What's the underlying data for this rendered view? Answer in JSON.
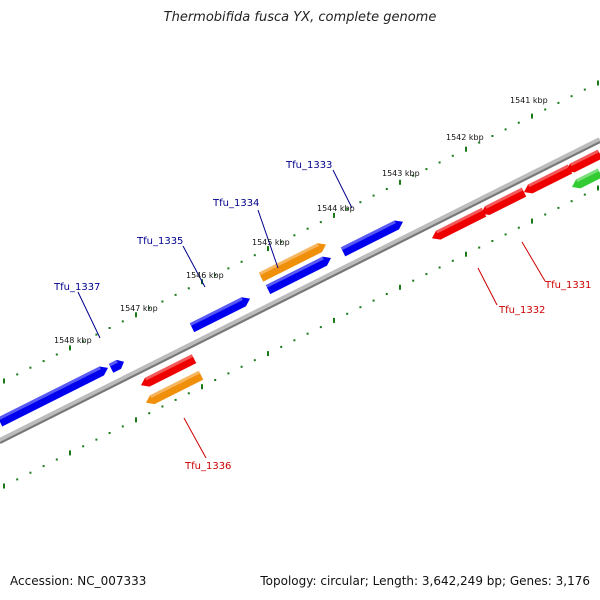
{
  "title": "Thermobifida fusca YX, complete genome",
  "accession_line": "Accession: NC_007333",
  "summary_line": "Topology: circular; Length: 3,642,249 bp; Genes: 3,176",
  "colors": {
    "backbone": "#8c8c8c",
    "ticks": "#1a7a1a",
    "forward_gene": "#0000ee",
    "reverse_gene": "#ee0000",
    "orange_gene": "#f0900a",
    "green_gene": "#33cc33",
    "forward_label": "#00008b",
    "reverse_label": "#cc0000"
  },
  "scale_labels": [
    "1541 kbp",
    "1542 kbp",
    "1543 kbp",
    "1544 kbp",
    "1545 kbp",
    "1546 kbp",
    "1547 kbp",
    "1548 kbp"
  ],
  "gene_labels": {
    "forward": [
      "Tfu_1333",
      "Tfu_1334",
      "Tfu_1335",
      "Tfu_1337"
    ],
    "reverse": [
      "Tfu_1331",
      "Tfu_1332",
      "Tfu_1336"
    ]
  }
}
